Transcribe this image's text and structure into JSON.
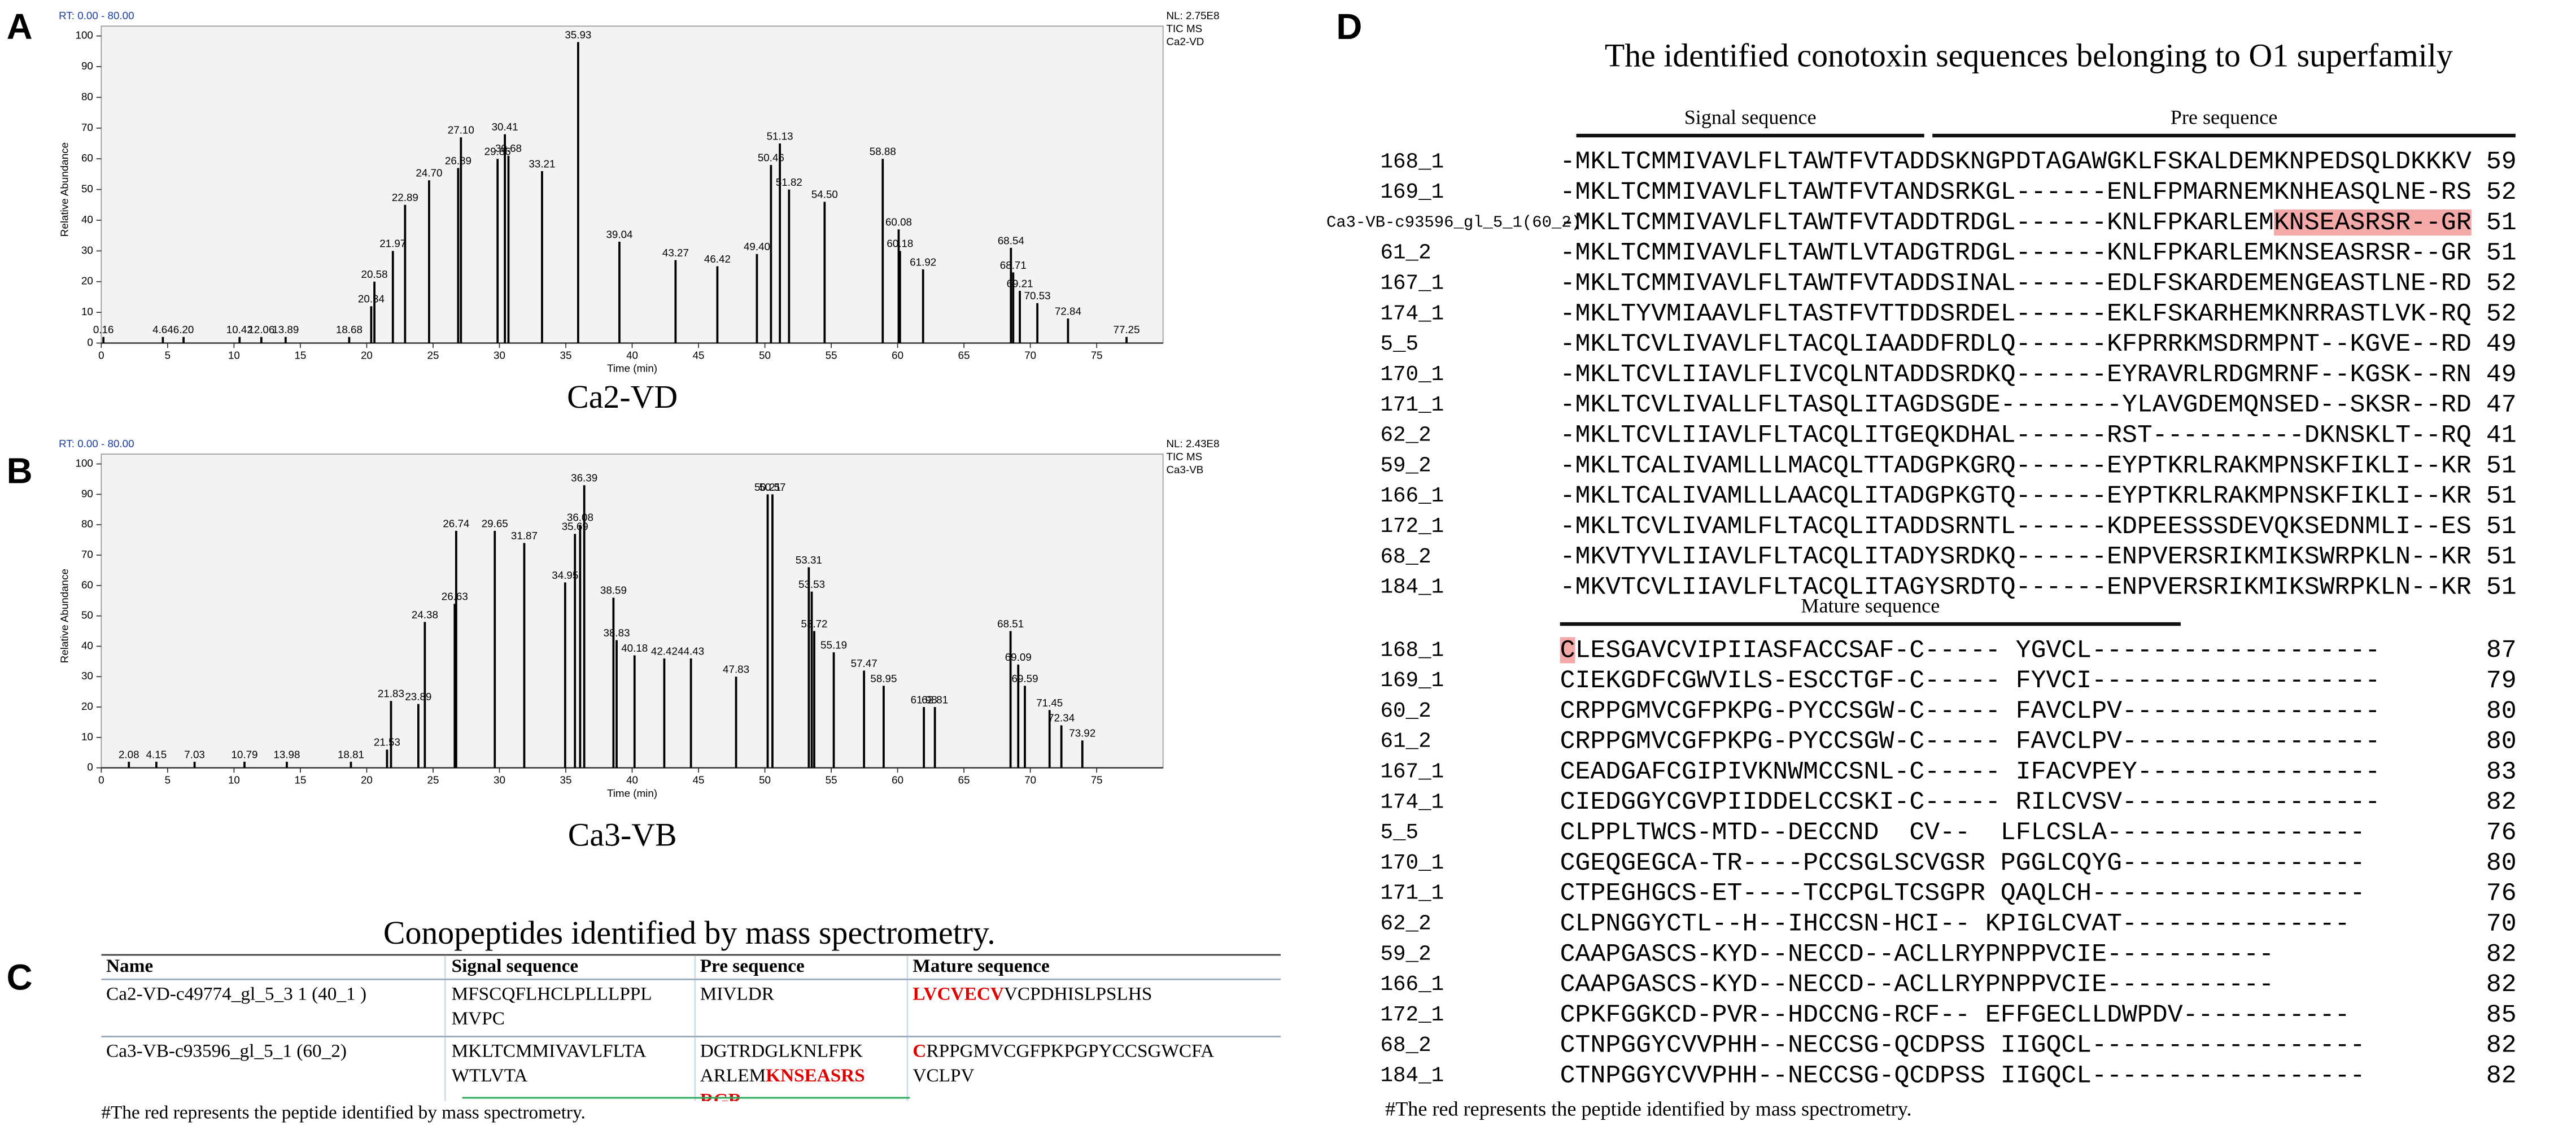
{
  "panel_labels": [
    "A",
    "B",
    "C",
    "D"
  ],
  "chart_data": [
    {
      "type": "peaks",
      "header": "RT: 0.00 - 80.00",
      "info": [
        "NL: 2.75E8",
        "TIC MS",
        "Ca2-VD"
      ],
      "subtitle": "Ca2-VD",
      "x_label": "Time (min)",
      "y_label": "Relative Abundance",
      "color": "#000000",
      "xlim": [
        0,
        80
      ],
      "xticks": [
        0,
        5,
        10,
        15,
        20,
        25,
        30,
        35,
        40,
        45,
        50,
        55,
        60,
        65,
        70,
        75
      ],
      "ylim": [
        0,
        100
      ],
      "yticks": [
        0,
        10,
        20,
        30,
        40,
        50,
        60,
        70,
        80,
        90,
        100
      ],
      "x": [
        0.16,
        4.64,
        6.2,
        10.42,
        12.06,
        13.89,
        18.68,
        20.34,
        20.58,
        21.97,
        22.89,
        24.7,
        26.89,
        27.1,
        29.86,
        30.41,
        30.68,
        33.21,
        35.93,
        39.04,
        43.27,
        46.42,
        49.4,
        50.46,
        51.13,
        51.82,
        54.5,
        58.88,
        60.08,
        60.18,
        61.92,
        68.54,
        68.71,
        69.21,
        70.53,
        72.84,
        77.25
      ],
      "x_labels": [
        "0.16",
        "4.64",
        "6.20",
        "10.42",
        "12.06",
        "13.89",
        "18.68",
        "20.34",
        "20.58",
        "21.97",
        "22.89",
        "24.70",
        "26.89",
        "27.10",
        "29.86",
        "30.41",
        "30.68",
        "33.21",
        "35.93",
        "39.04",
        "43.27",
        "46.42",
        "49.40",
        "50.46",
        "51.13",
        "51.82",
        "54.50",
        "58.88",
        "60.08",
        "60.18",
        "61.92",
        "68.54",
        "68.71",
        "69.21",
        "70.53",
        "72.84",
        "77.25"
      ],
      "values": [
        2,
        2,
        2,
        2,
        2,
        2,
        2,
        12,
        20,
        30,
        45,
        53,
        57,
        67,
        60,
        68,
        61,
        56,
        98,
        33,
        27,
        25,
        29,
        58,
        65,
        50,
        46,
        60,
        37,
        30,
        24,
        31,
        23,
        17,
        13,
        8,
        2
      ]
    },
    {
      "type": "peaks",
      "header": "RT: 0.00 - 80.00",
      "info": [
        "NL: 2.43E8",
        "TIC MS",
        "Ca3-VB"
      ],
      "subtitle": "Ca3-VB",
      "x_label": "Time (min)",
      "y_label": "Relative Abundance",
      "color": "#000000",
      "xlim": [
        0,
        80
      ],
      "xticks": [
        0,
        5,
        10,
        15,
        20,
        25,
        30,
        35,
        40,
        45,
        50,
        55,
        60,
        65,
        70,
        75
      ],
      "ylim": [
        0,
        100
      ],
      "yticks": [
        0,
        10,
        20,
        30,
        40,
        50,
        60,
        70,
        80,
        90,
        100
      ],
      "x": [
        2.08,
        4.15,
        7.03,
        10.79,
        13.98,
        18.81,
        21.53,
        21.83,
        23.89,
        24.38,
        26.63,
        26.74,
        29.65,
        31.87,
        34.95,
        35.69,
        36.08,
        36.39,
        38.59,
        38.83,
        40.18,
        42.42,
        44.43,
        47.83,
        50.21,
        50.57,
        53.31,
        53.53,
        53.72,
        55.19,
        57.47,
        58.95,
        61.98,
        62.81,
        68.51,
        69.09,
        69.59,
        71.45,
        72.34,
        73.92
      ],
      "x_labels": [
        "2.08",
        "4.15",
        "7.03",
        "10.79",
        "13.98",
        "18.81",
        "21.53",
        "21.83",
        "23.89",
        "24.38",
        "26.63",
        "26.74",
        "29.65",
        "31.87",
        "34.95",
        "35.69",
        "36.08",
        "36.39",
        "38.59",
        "38.83",
        "40.18",
        "42.42",
        "44.43",
        "47.83",
        "50.21",
        "50.57",
        "53.31",
        "53.53",
        "53.72",
        "55.19",
        "57.47",
        "58.95",
        "61.98",
        "62.81",
        "68.51",
        "69.09",
        "69.59",
        "71.45",
        "72.34",
        "73.92"
      ],
      "values": [
        2,
        2,
        2,
        2,
        2,
        2,
        6,
        22,
        21,
        48,
        54,
        78,
        78,
        74,
        61,
        77,
        80,
        93,
        56,
        42,
        37,
        36,
        36,
        30,
        90,
        90,
        66,
        58,
        45,
        38,
        32,
        27,
        20,
        20,
        45,
        34,
        27,
        19,
        14,
        9
      ]
    }
  ],
  "table": {
    "title": "Conopeptides identified by mass spectrometry.",
    "header": [
      "Name",
      "Signal sequence",
      "Pre sequence",
      "Mature sequence"
    ],
    "rows": [
      [
        "Ca2-VD-c49774_gl_5_3 1 (40_1 )",
        "MFSCQFLHCLPLLLPPL MVPC",
        "MIVLDR",
        [
          {
            "text": "LVCVECV",
            "red": true
          },
          {
            "text": "VCPDHISLPSLHS"
          }
        ]
      ],
      [
        "Ca3-VB-c93596_gl_5_1 (60_2)",
        "MKLTCMMIVAVLFLTA WTLVTA",
        [
          {
            "text": "DGTRDGLKNLFPK ARLEM"
          },
          {
            "text": "KNSEASRS RGR",
            "red": true
          }
        ],
        [
          {
            "text": "C",
            "red": true
          },
          {
            "text": "RPPGMVCGFPKPGPYCCSGWCFA VCLPV"
          }
        ]
      ]
    ],
    "footnote": "#The red represents the peptide identified by mass spectrometry."
  },
  "alignment": {
    "title": "The identified conotoxin sequences belonging to O1 superfamily",
    "footnote": "#The red represents the peptide identified by mass spectrometry.",
    "blocks": [
      {
        "groups": [
          "Signal sequence",
          "Pre sequence"
        ],
        "rows": [
          {
            "name": "168_1",
            "seq": "-MKLTCMMIVAVLFLTAWTFVTADDSKNGPDTAGAWGKLFSKALDEMKNPEDSQLDKKKV",
            "length": 59
          },
          {
            "name": "169_1",
            "seq": "-MKLTCMMIVAVLFLTAWTFVTANDSRKGL------ENLFPMARNEMKNHEASQLNE-RS",
            "length": 52
          },
          {
            "name": "Ca3-VB-c93596_gl_5_1(60_2)",
            "seq": [
              {
                "text": "-MKLTCMMIVAVLFLTAWTFVTADDTRDGL------KNLFPKARLEM"
              },
              {
                "text": "KNSEASRSR--GR",
                "highlight": true
              }
            ],
            "length": 51
          },
          {
            "name": "61_2",
            "seq": "-MKLTCMMIVAVLFLTAWTLVTADGTRDGL------KNLFPKARLEMKNSEASRSR--GR",
            "length": 51
          },
          {
            "name": "167_1",
            "seq": "-MKLTCMMIVAVLFLTAWTFVTADDSINAL------EDLFSKARDEMENGEASTLNE-RD",
            "length": 52
          },
          {
            "name": "174_1",
            "seq": "-MKLTYVMIAAVLFLTASTFVTTDDSRDEL------EKLFSKARHEMKNRRASTLVK-RQ",
            "length": 52
          },
          {
            "name": "5_5",
            "seq": "-MKLTCVLIVAVLFLTACQLIAADDFRDLQ------KFPRRKMSDRMPNT--KGVE--RD",
            "length": 49
          },
          {
            "name": "170_1",
            "seq": "-MKLTCVLIIAVLFLIVCQLNTADDSRDKQ------EYRAVRLRDGMRNF--KGSK--RN",
            "length": 49
          },
          {
            "name": "171_1",
            "seq": "-MKLTCVLIVALLFLTASQLITAGDSGDE--------YLAVGDEMQNSED--SKSR--RD",
            "length": 47
          },
          {
            "name": "62_2",
            "seq": "-MKLTCVLIIAVLFLTACQLITGEQKDHAL------RST----------DKNSKLT--RQ",
            "length": 41
          },
          {
            "name": "59_2",
            "seq": "-MKLTCALIVAMLLLMACQLTTADGPKGRQ------EYPTKRLRAKMPNSKFIKLI--KR",
            "length": 51
          },
          {
            "name": "166_1",
            "seq": "-MKLTCALIVAMLLLAACQLITADGPKGTQ------EYPTKRLRAKMPNSKFIKLI--KR",
            "length": 51
          },
          {
            "name": "172_1",
            "seq": "-MKLTCVLIVAMLFLTACQLITADDSRNTL------KDPEESSSDEVQKSEDNMLI--ES",
            "length": 51
          },
          {
            "name": "68_2",
            "seq": "-MKVTYVLIIAVLFLTACQLITADYSRDKQ------ENPVERSRIKMIKSWRPKLN--KR",
            "length": 51
          },
          {
            "name": "184_1",
            "seq": "-MKVTCVLIIAVLFLTACQLITAGYSRDTQ------ENPVERSRIKMIKSWRPKLN--KR",
            "length": 51
          }
        ]
      },
      {
        "groups": [
          "Mature sequence"
        ],
        "rows": [
          {
            "name": "168_1",
            "seq": [
              {
                "text": "C",
                "highlight": true
              },
              {
                "text": "LESGAVCVIPIIASFACCSAF-C----- YGVCL-------------------"
              }
            ],
            "length": 87
          },
          {
            "name": "169_1",
            "seq": "CIEKGDFCGWVILS-ESCCTGF-C----- FYVCI-------------------",
            "length": 79
          },
          {
            "name": "60_2",
            "seq": "CRPPGMVCGFPKPG-PYCCSGW-C----- FAVCLPV-----------------",
            "length": 80
          },
          {
            "name": "61_2",
            "seq": "CRPPGMVCGFPKPG-PYCCSGW-C----- FAVCLPV-----------------",
            "length": 80
          },
          {
            "name": "167_1",
            "seq": "CEADGAFCGIPIVKNWMCCSNL-C----- IFACVPEY----------------",
            "length": 83
          },
          {
            "name": "174_1",
            "seq": "CIEDGGYCGVPIIDDELCCSKI-C----- RILCVSV-----------------",
            "length": 82
          },
          {
            "name": "5_5",
            "seq": "CLPPLTWCS-MTD--DECCND  CV--  LFLCSLA-----------------",
            "length": 76
          },
          {
            "name": "170_1",
            "seq": "CGEQGEGCA-TR----PCCSGLSCVGSR PGGLCQYG----------------",
            "length": 80
          },
          {
            "name": "171_1",
            "seq": "CTPEGHGCS-ET----TCCPGLTCSGPR QAQLCH------------------",
            "length": 76
          },
          {
            "name": "62_2",
            "seq": "CLPNGGYCTL--H--IHCCSN-HCI-- KPIGLCVAT---------------",
            "length": 70
          },
          {
            "name": "59_2",
            "seq": "CAAPGASCS-KYD--NECCD--ACLLRYPNPPVCIE-----------",
            "length": 82
          },
          {
            "name": "166_1",
            "seq": "CAAPGASCS-KYD--NECCD--ACLLRYPNPPVCIE-----------",
            "length": 82
          },
          {
            "name": "172_1",
            "seq": "CPKFGGKCD-PVR--HDCCNG-RCF-- EFFGECLLDWPDV-----------",
            "length": 85
          },
          {
            "name": "68_2",
            "seq": "CTNPGGYCVVPHH--NECCSG-QCDPSS IIGQCL------------------",
            "length": 82
          },
          {
            "name": "184_1",
            "seq": "CTNPGGYCVVPHH--NECCSG-QCDPSS IIGQCL------------------",
            "length": 82
          }
        ]
      }
    ]
  }
}
